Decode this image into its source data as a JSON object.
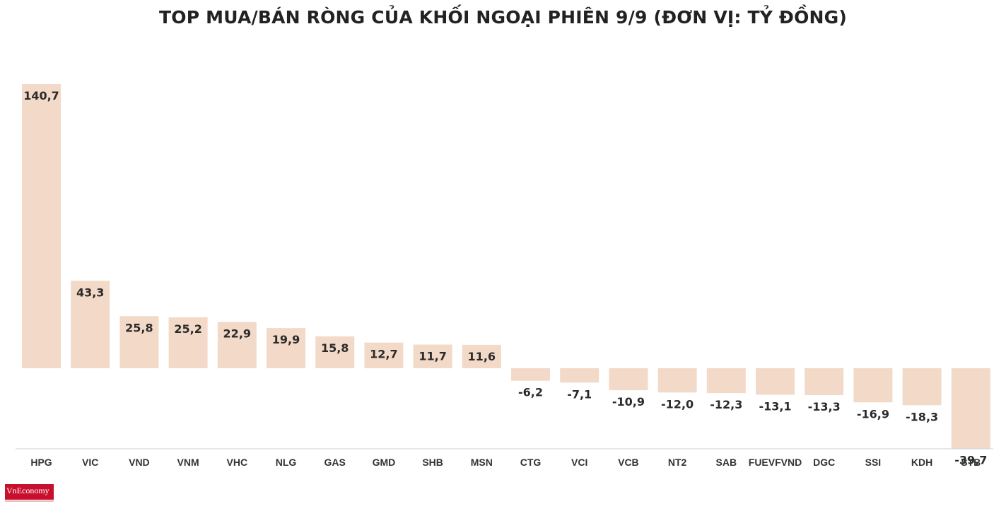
{
  "title": "TOP MUA/BÁN RÒNG CỦA KHỐI NGOẠI PHIÊN 9/9 (ĐƠN VỊ: TỶ ĐỒNG)",
  "logo": {
    "text": "VnEconomy"
  },
  "colors": {
    "bar": "#f3d9c7",
    "label": "#2b2b2b",
    "axis": "#cfcfcf",
    "title": "#222222"
  },
  "chart_data": {
    "type": "bar",
    "title": "TOP MUA/BÁN RÒNG CỦA KHỐI NGOẠI PHIÊN 9/9 (ĐƠN VỊ: TỶ ĐỒNG)",
    "xlabel": "",
    "ylabel": "",
    "ylim": [
      -39.7,
      140.7
    ],
    "grid": false,
    "categories": [
      "HPG",
      "VIC",
      "VND",
      "VNM",
      "VHC",
      "NLG",
      "GAS",
      "GMD",
      "SHB",
      "MSN",
      "CTG",
      "VCI",
      "VCB",
      "NT2",
      "SAB",
      "FUEVFVND",
      "DGC",
      "SSI",
      "KDH",
      "STB"
    ],
    "values": [
      140.7,
      43.3,
      25.8,
      25.2,
      22.9,
      19.9,
      15.8,
      12.7,
      11.7,
      11.6,
      -6.2,
      -7.1,
      -10.9,
      -12.0,
      -12.3,
      -13.1,
      -13.3,
      -16.9,
      -18.3,
      -39.7
    ],
    "value_labels": [
      "140,7",
      "43,3",
      "25,8",
      "25,2",
      "22,9",
      "19,9",
      "15,8",
      "12,7",
      "11,7",
      "11,6",
      "-6,2",
      "-7,1",
      "-10,9",
      "-12,0",
      "-12,3",
      "-13,1",
      "-13,3",
      "-16,9",
      "-18,3",
      "-39,7"
    ]
  }
}
